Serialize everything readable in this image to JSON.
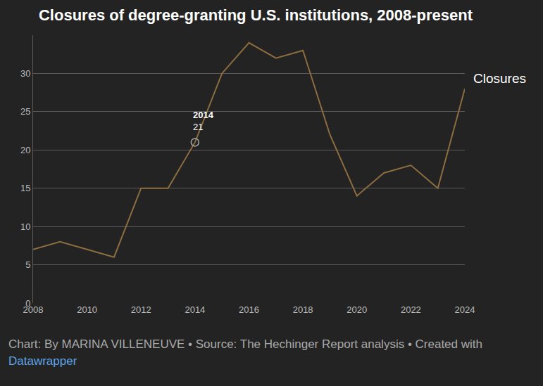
{
  "chart_data": {
    "type": "line",
    "title": "Closures of degree-granting U.S. institutions, 2008-present",
    "x": [
      2008,
      2009,
      2010,
      2011,
      2012,
      2013,
      2014,
      2015,
      2016,
      2017,
      2018,
      2019,
      2020,
      2021,
      2022,
      2023,
      2024
    ],
    "series": [
      {
        "name": "Closures",
        "color": "#8c6d3f",
        "values": [
          7,
          8,
          7,
          6,
          15,
          15,
          21,
          30,
          34,
          32,
          33,
          22,
          14,
          17,
          18,
          15,
          28
        ]
      }
    ],
    "xlim": [
      2008,
      2024
    ],
    "xticks": [
      2008,
      2010,
      2012,
      2014,
      2016,
      2018,
      2020,
      2022,
      2024
    ],
    "ylim": [
      0,
      35
    ],
    "yticks": [
      0,
      5,
      10,
      15,
      20,
      25,
      30
    ],
    "grid": true,
    "annotations": [
      {
        "x": 2014,
        "y": 21
      }
    ],
    "note": "Chart: By MARINA VILLENEUVE • Source: The Hechinger Report analysis • Created with",
    "note_link": "Datawrapper"
  }
}
